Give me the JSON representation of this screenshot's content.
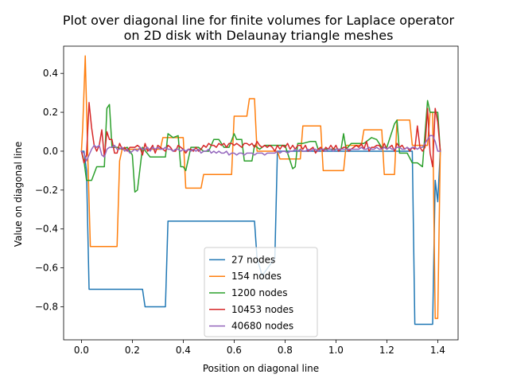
{
  "chart_data": {
    "type": "line",
    "title": [
      "Plot over diagonal line for finite volumes for Laplace operator",
      "on 2D disk with Delaunay triangle meshes"
    ],
    "xlabel": "Position on diagonal line",
    "ylabel": "Value on diagonal line",
    "xlim": [
      -0.07,
      1.48
    ],
    "ylim": [
      -0.97,
      0.54
    ],
    "xticks": [
      0.0,
      0.2,
      0.4,
      0.6,
      0.8,
      1.0,
      1.2,
      1.4
    ],
    "xtick_labels": [
      "0.0",
      "0.2",
      "0.4",
      "0.6",
      "0.8",
      "1.0",
      "1.2",
      "1.4"
    ],
    "yticks": [
      0.4,
      0.2,
      0.0,
      -0.2,
      -0.4,
      -0.6,
      -0.8
    ],
    "ytick_labels": [
      "0.4",
      "0.2",
      "0.0",
      "−0.2",
      "−0.4",
      "−0.6",
      "−0.8"
    ],
    "grid": false,
    "legend_position": "lower center",
    "series": [
      {
        "name": "27 nodes",
        "color": "#1f77b4",
        "x": [
          0.0,
          0.01,
          0.02,
          0.03,
          0.24,
          0.25,
          0.33,
          0.34,
          0.68,
          0.69,
          0.71,
          0.76,
          0.77,
          1.3,
          1.31,
          1.38,
          1.39,
          1.4,
          1.41
        ],
        "y": [
          0.0,
          0.0,
          -0.1,
          -0.71,
          -0.71,
          -0.8,
          -0.8,
          -0.36,
          -0.36,
          -0.55,
          -0.64,
          -0.55,
          0.0,
          0.0,
          -0.89,
          -0.89,
          -0.15,
          -0.26,
          0.0
        ]
      },
      {
        "name": "154 nodes",
        "color": "#ff7f0e",
        "x": [
          0.0,
          0.005,
          0.015,
          0.025,
          0.035,
          0.14,
          0.15,
          0.16,
          0.31,
          0.32,
          0.4,
          0.41,
          0.47,
          0.48,
          0.59,
          0.6,
          0.65,
          0.66,
          0.68,
          0.69,
          0.77,
          0.78,
          0.86,
          0.87,
          0.94,
          0.95,
          1.03,
          1.04,
          1.1,
          1.11,
          1.18,
          1.19,
          1.23,
          1.24,
          1.29,
          1.3,
          1.36,
          1.37,
          1.38,
          1.39,
          1.4,
          1.41
        ],
        "y": [
          0.0,
          0.12,
          0.49,
          -0.03,
          -0.49,
          -0.49,
          -0.05,
          0.01,
          0.01,
          0.07,
          0.07,
          -0.19,
          -0.19,
          -0.12,
          -0.12,
          0.18,
          0.18,
          0.27,
          0.27,
          0.0,
          0.0,
          -0.04,
          -0.04,
          0.13,
          0.13,
          -0.1,
          -0.1,
          0.03,
          0.03,
          0.11,
          0.11,
          -0.12,
          -0.12,
          0.16,
          0.16,
          0.03,
          0.03,
          0.2,
          0.2,
          -0.86,
          -0.86,
          0.0
        ]
      },
      {
        "name": "1200 nodes",
        "color": "#2ca02c",
        "x": [
          0.0,
          0.01,
          0.02,
          0.04,
          0.06,
          0.09,
          0.1,
          0.11,
          0.12,
          0.14,
          0.16,
          0.18,
          0.2,
          0.21,
          0.22,
          0.24,
          0.27,
          0.29,
          0.33,
          0.34,
          0.36,
          0.38,
          0.39,
          0.4,
          0.41,
          0.43,
          0.46,
          0.48,
          0.5,
          0.52,
          0.54,
          0.56,
          0.58,
          0.6,
          0.61,
          0.63,
          0.64,
          0.67,
          0.68,
          0.7,
          0.72,
          0.75,
          0.77,
          0.8,
          0.83,
          0.84,
          0.85,
          0.87,
          0.9,
          0.92,
          0.93,
          0.95,
          0.98,
          1.02,
          1.03,
          1.04,
          1.06,
          1.08,
          1.11,
          1.14,
          1.16,
          1.18,
          1.2,
          1.23,
          1.24,
          1.25,
          1.28,
          1.3,
          1.32,
          1.34,
          1.36,
          1.37,
          1.38,
          1.4,
          1.41
        ],
        "y": [
          0.0,
          -0.05,
          -0.15,
          -0.15,
          -0.08,
          -0.08,
          0.22,
          0.24,
          0.02,
          0.02,
          0.01,
          0.02,
          -0.02,
          -0.21,
          -0.2,
          0.02,
          -0.03,
          -0.03,
          -0.03,
          0.09,
          0.07,
          0.08,
          -0.08,
          -0.08,
          -0.1,
          0.02,
          0.02,
          0.0,
          0.0,
          0.06,
          0.06,
          0.02,
          0.02,
          0.09,
          0.06,
          0.06,
          -0.05,
          -0.05,
          0.03,
          0.01,
          0.03,
          0.03,
          0.03,
          0.03,
          -0.09,
          -0.08,
          0.04,
          0.04,
          0.05,
          0.05,
          0.01,
          0.01,
          0.01,
          0.01,
          0.09,
          0.01,
          0.04,
          0.04,
          0.04,
          0.07,
          0.06,
          0.02,
          0.02,
          0.14,
          0.16,
          -0.01,
          -0.01,
          -0.06,
          -0.06,
          -0.08,
          0.26,
          0.2,
          0.2,
          0.2,
          0.0
        ]
      },
      {
        "name": "10453 nodes",
        "color": "#d62728",
        "x": [
          0.0,
          0.01,
          0.02,
          0.03,
          0.04,
          0.05,
          0.06,
          0.07,
          0.08,
          0.09,
          0.1,
          0.11,
          0.12,
          0.13,
          0.14,
          0.15,
          0.16,
          0.17,
          0.18,
          0.19,
          0.2,
          0.21,
          0.22,
          0.23,
          0.24,
          0.25,
          0.26,
          0.27,
          0.28,
          0.29,
          0.3,
          0.31,
          0.32,
          0.33,
          0.34,
          0.35,
          0.36,
          0.37,
          0.38,
          0.39,
          0.4,
          0.41,
          0.42,
          0.43,
          0.44,
          0.45,
          0.46,
          0.47,
          0.48,
          0.49,
          0.5,
          0.51,
          0.52,
          0.53,
          0.54,
          0.55,
          0.56,
          0.57,
          0.58,
          0.59,
          0.6,
          0.61,
          0.62,
          0.63,
          0.64,
          0.65,
          0.66,
          0.67,
          0.68,
          0.69,
          0.7,
          0.71,
          0.72,
          0.73,
          0.74,
          0.75,
          0.76,
          0.77,
          0.78,
          0.79,
          0.8,
          0.81,
          0.82,
          0.83,
          0.84,
          0.85,
          0.86,
          0.87,
          0.88,
          0.89,
          0.9,
          0.91,
          0.92,
          0.93,
          0.94,
          0.95,
          0.96,
          0.97,
          0.98,
          0.99,
          1.0,
          1.01,
          1.02,
          1.03,
          1.04,
          1.05,
          1.06,
          1.07,
          1.08,
          1.09,
          1.1,
          1.11,
          1.12,
          1.13,
          1.14,
          1.15,
          1.16,
          1.17,
          1.18,
          1.19,
          1.2,
          1.21,
          1.22,
          1.23,
          1.24,
          1.25,
          1.26,
          1.27,
          1.28,
          1.29,
          1.3,
          1.31,
          1.32,
          1.33,
          1.34,
          1.35,
          1.36,
          1.37,
          1.38,
          1.39,
          1.4,
          1.41
        ],
        "y": [
          0.0,
          -0.06,
          -0.02,
          0.25,
          0.12,
          0.03,
          0.0,
          0.03,
          0.11,
          -0.03,
          0.1,
          0.06,
          0.06,
          -0.01,
          -0.01,
          0.04,
          0.01,
          0.02,
          0.0,
          0.02,
          0.02,
          0.02,
          0.03,
          0.02,
          -0.02,
          0.04,
          0.0,
          0.01,
          0.03,
          -0.01,
          0.03,
          0.02,
          0.01,
          0.0,
          0.03,
          0.02,
          0.0,
          0.0,
          0.03,
          0.02,
          0.01,
          -0.01,
          0.01,
          0.01,
          0.0,
          0.02,
          0.0,
          0.01,
          0.03,
          0.02,
          0.04,
          0.03,
          0.03,
          0.02,
          0.04,
          0.03,
          0.04,
          0.02,
          0.04,
          0.04,
          0.03,
          0.04,
          0.03,
          0.02,
          0.04,
          0.04,
          0.03,
          0.04,
          0.02,
          0.05,
          0.03,
          0.02,
          0.03,
          0.02,
          0.03,
          0.02,
          0.0,
          0.03,
          0.01,
          0.03,
          0.02,
          0.04,
          0.01,
          0.03,
          0.01,
          0.03,
          0.03,
          0.01,
          0.03,
          0.0,
          0.01,
          0.02,
          -0.01,
          0.01,
          0.02,
          0.0,
          0.02,
          0.01,
          0.03,
          0.01,
          0.03,
          0.0,
          0.01,
          0.02,
          0.02,
          0.0,
          0.01,
          0.02,
          0.03,
          0.02,
          0.04,
          0.01,
          0.05,
          0.0,
          0.02,
          0.02,
          0.03,
          0.03,
          0.01,
          0.04,
          0.01,
          0.02,
          0.03,
          0.0,
          0.04,
          0.02,
          0.03,
          0.01,
          0.02,
          0.0,
          0.02,
          0.01,
          0.13,
          0.02,
          0.0,
          0.02,
          0.22,
          -0.01,
          -0.08,
          0.22,
          0.15,
          0.0
        ]
      },
      {
        "name": "40680 nodes",
        "color": "#9467bd",
        "x": [
          0.0,
          0.01,
          0.02,
          0.03,
          0.04,
          0.05,
          0.06,
          0.07,
          0.08,
          0.09,
          0.1,
          0.11,
          0.12,
          0.13,
          0.14,
          0.15,
          0.16,
          0.17,
          0.18,
          0.19,
          0.2,
          0.21,
          0.22,
          0.23,
          0.24,
          0.25,
          0.26,
          0.27,
          0.28,
          0.29,
          0.3,
          0.31,
          0.32,
          0.33,
          0.34,
          0.35,
          0.36,
          0.37,
          0.38,
          0.39,
          0.4,
          0.41,
          0.42,
          0.43,
          0.44,
          0.45,
          0.46,
          0.47,
          0.48,
          0.49,
          0.5,
          0.51,
          0.52,
          0.53,
          0.54,
          0.55,
          0.56,
          0.57,
          0.58,
          0.59,
          0.6,
          0.61,
          0.62,
          0.63,
          0.64,
          0.65,
          0.66,
          0.67,
          0.68,
          0.69,
          0.7,
          0.71,
          0.72,
          0.73,
          0.74,
          0.75,
          0.76,
          0.77,
          0.78,
          0.79,
          0.8,
          0.81,
          0.82,
          0.83,
          0.84,
          0.85,
          0.86,
          0.87,
          0.88,
          0.89,
          0.9,
          0.91,
          0.92,
          0.93,
          0.94,
          0.95,
          0.96,
          0.97,
          0.98,
          0.99,
          1.0,
          1.01,
          1.02,
          1.03,
          1.04,
          1.05,
          1.06,
          1.07,
          1.08,
          1.09,
          1.1,
          1.11,
          1.12,
          1.13,
          1.14,
          1.15,
          1.16,
          1.17,
          1.18,
          1.19,
          1.2,
          1.21,
          1.22,
          1.23,
          1.24,
          1.25,
          1.26,
          1.27,
          1.28,
          1.29,
          1.3,
          1.31,
          1.32,
          1.33,
          1.34,
          1.35,
          1.36,
          1.37,
          1.38,
          1.39,
          1.4,
          1.41
        ],
        "y": [
          0.0,
          -0.01,
          -0.05,
          -0.02,
          0.01,
          0.03,
          0.02,
          0.03,
          -0.02,
          -0.03,
          0.01,
          0.02,
          0.02,
          0.03,
          0.01,
          0.01,
          0.02,
          0.0,
          0.01,
          -0.01,
          0.0,
          0.01,
          0.0,
          0.02,
          0.01,
          0.01,
          0.02,
          0.0,
          0.02,
          0.01,
          0.02,
          0.01,
          0.01,
          0.02,
          0.01,
          0.01,
          0.0,
          0.01,
          0.01,
          0.0,
          0.01,
          0.0,
          0.01,
          0.0,
          0.01,
          0.0,
          0.01,
          -0.01,
          0.0,
          0.0,
          0.01,
          -0.01,
          0.0,
          -0.01,
          0.0,
          -0.01,
          -0.01,
          0.0,
          -0.02,
          -0.01,
          -0.01,
          -0.02,
          -0.01,
          -0.01,
          -0.02,
          -0.01,
          -0.01,
          -0.01,
          -0.02,
          -0.01,
          -0.01,
          -0.01,
          -0.02,
          -0.01,
          -0.01,
          -0.01,
          -0.01,
          0.0,
          -0.01,
          0.0,
          0.0,
          -0.01,
          0.0,
          0.0,
          0.01,
          0.0,
          0.01,
          0.0,
          0.0,
          0.01,
          0.0,
          0.01,
          0.01,
          0.0,
          0.01,
          0.01,
          0.0,
          0.01,
          0.01,
          0.0,
          0.01,
          0.01,
          0.01,
          0.01,
          0.01,
          0.01,
          0.01,
          0.01,
          0.01,
          0.01,
          0.02,
          0.01,
          0.01,
          0.02,
          0.01,
          0.01,
          0.02,
          0.01,
          0.01,
          0.02,
          0.01,
          0.02,
          0.01,
          0.01,
          0.02,
          0.02,
          0.01,
          0.01,
          0.02,
          0.01,
          0.02,
          0.02,
          0.01,
          0.02,
          0.02,
          0.04,
          0.06,
          0.08,
          0.08,
          0.05,
          0.0,
          0.0
        ]
      }
    ]
  }
}
